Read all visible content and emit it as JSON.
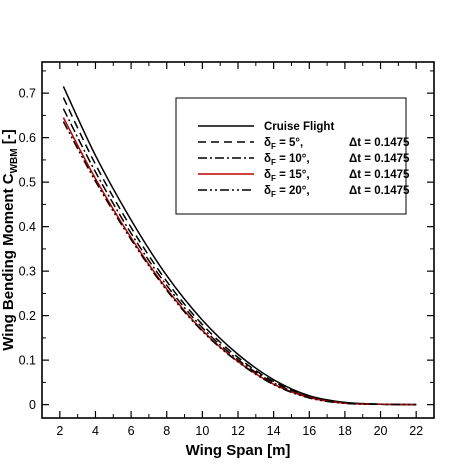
{
  "chart_data": {
    "type": "line",
    "xlabel": "Wing Span [m]",
    "ylabel": {
      "main": "Wing Bending Moment C",
      "sub": "WBM",
      "unit": " [-]"
    },
    "xlim": [
      1,
      23
    ],
    "ylim": [
      -0.03,
      0.77
    ],
    "xticks": [
      2,
      4,
      6,
      8,
      10,
      12,
      14,
      16,
      18,
      20,
      22
    ],
    "yticks": [
      0,
      0.1,
      0.2,
      0.3,
      0.4,
      0.5,
      0.6,
      0.7
    ],
    "ytick_labels": [
      "0",
      "0.1",
      "0.2",
      "0.3",
      "0.4",
      "0.5",
      "0.6",
      "0.7"
    ],
    "grid": false,
    "legend_position": "upper-right",
    "series": [
      {
        "name": "Cruise Flight",
        "legend": {
          "lead": "Cruise Flight",
          "sub": "",
          "mid": "",
          "tail": ""
        },
        "color": "#000000",
        "dash": "",
        "x": [
          2.2,
          4,
          6,
          8,
          10,
          12,
          14,
          16,
          18,
          20,
          22
        ],
        "y": [
          0.715,
          0.56,
          0.415,
          0.29,
          0.19,
          0.113,
          0.056,
          0.02,
          0.005,
          0.001,
          0.0
        ]
      },
      {
        "name": "δF = 5°, Δt = 0.1475",
        "legend": {
          "lead": "δ",
          "sub": "F",
          "mid": " = 5°, ",
          "tail": "Δt = 0.1475"
        },
        "color": "#000000",
        "dash": "8,5",
        "x": [
          2.2,
          4,
          6,
          8,
          10,
          12,
          14,
          16,
          18,
          20,
          22
        ],
        "y": [
          0.69,
          0.54,
          0.398,
          0.277,
          0.18,
          0.106,
          0.052,
          0.018,
          0.004,
          0.001,
          0.0
        ]
      },
      {
        "name": "δF = 10°, Δt = 0.1475",
        "legend": {
          "lead": "δ",
          "sub": "F",
          "mid": " = 10°, ",
          "tail": "Δt = 0.1475"
        },
        "color": "#000000",
        "dash": "9,3,2,3",
        "x": [
          2.2,
          4,
          6,
          8,
          10,
          12,
          14,
          16,
          18,
          20,
          22
        ],
        "y": [
          0.665,
          0.523,
          0.385,
          0.268,
          0.173,
          0.101,
          0.049,
          0.017,
          0.004,
          0.001,
          0.0
        ]
      },
      {
        "name": "δF = 15°, Δt = 0.1475",
        "legend": {
          "lead": "δ",
          "sub": "F",
          "mid": " = 15°, ",
          "tail": "Δt = 0.1475"
        },
        "color": "#c00000",
        "dash": "",
        "x": [
          2.2,
          4,
          6,
          8,
          10,
          12,
          14,
          16,
          18,
          20,
          22
        ],
        "y": [
          0.645,
          0.508,
          0.375,
          0.26,
          0.167,
          0.097,
          0.046,
          0.016,
          0.003,
          0.001,
          0.0
        ]
      },
      {
        "name": "δF = 20°, Δt = 0.1475",
        "legend": {
          "lead": "δ",
          "sub": "F",
          "mid": " = 20°, ",
          "tail": "Δt = 0.1475"
        },
        "color": "#000000",
        "dash": "9,3,2,3,2,3",
        "x": [
          2.2,
          4,
          6,
          8,
          10,
          12,
          14,
          16,
          18,
          20,
          22
        ],
        "y": [
          0.636,
          0.502,
          0.371,
          0.257,
          0.165,
          0.096,
          0.045,
          0.015,
          0.003,
          0.001,
          0.0
        ]
      }
    ]
  }
}
